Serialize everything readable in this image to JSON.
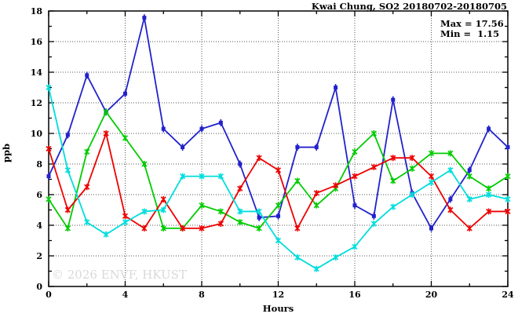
{
  "watermark": "© 2026 ENVF, HKUST",
  "chart_data": {
    "type": "line",
    "title": "Kwai Chung, SO2 20180702-20180705",
    "xlabel": "Hours",
    "ylabel": "ppb",
    "xlim": [
      0,
      24
    ],
    "ylim": [
      0,
      18
    ],
    "grid": true,
    "legend": "none",
    "x_major_ticks": [
      0,
      4,
      8,
      12,
      16,
      20,
      24
    ],
    "x_minor_ticks": [
      2,
      6,
      10,
      14,
      18,
      22
    ],
    "y_major_ticks": [
      0,
      2,
      4,
      6,
      8,
      10,
      12,
      14,
      16,
      18
    ],
    "y_minor_ticks": [
      1,
      3,
      5,
      7,
      9,
      11,
      13,
      15,
      17
    ],
    "x": [
      0,
      1,
      2,
      3,
      4,
      5,
      6,
      7,
      8,
      9,
      10,
      11,
      12,
      13,
      14,
      15,
      16,
      17,
      18,
      19,
      20,
      21,
      22,
      23,
      24
    ],
    "series": [
      {
        "name": "station-blue",
        "color": "#2222cc",
        "values": [
          7.2,
          9.9,
          13.8,
          11.4,
          12.6,
          17.56,
          10.3,
          9.1,
          10.3,
          10.7,
          8.0,
          4.5,
          4.6,
          9.1,
          9.1,
          13.0,
          5.3,
          4.6,
          12.2,
          6.1,
          3.8,
          5.7,
          7.6,
          10.3,
          9.1
        ]
      },
      {
        "name": "station-green",
        "color": "#00cc00",
        "values": [
          5.7,
          3.8,
          8.8,
          11.4,
          9.7,
          8.0,
          3.8,
          3.8,
          5.3,
          4.9,
          4.2,
          3.8,
          5.3,
          6.9,
          5.3,
          6.4,
          8.8,
          10.0,
          6.9,
          7.7,
          8.7,
          8.7,
          7.2,
          6.4,
          7.2
        ]
      },
      {
        "name": "station-red",
        "color": "#ee0000",
        "values": [
          9.0,
          5.0,
          6.5,
          10.0,
          4.6,
          3.8,
          5.7,
          3.8,
          3.8,
          4.1,
          6.4,
          8.4,
          7.6,
          3.8,
          6.1,
          6.6,
          7.2,
          7.8,
          8.4,
          8.4,
          7.2,
          5.0,
          3.8,
          4.9,
          4.9
        ]
      },
      {
        "name": "station-cyan",
        "color": "#00dddd",
        "values": [
          13.0,
          7.6,
          4.2,
          3.4,
          4.2,
          4.9,
          5.0,
          7.2,
          7.2,
          7.2,
          4.9,
          4.9,
          3.0,
          1.9,
          1.15,
          1.9,
          2.6,
          4.1,
          5.2,
          6.0,
          6.8,
          7.6,
          5.7,
          6.0,
          5.7
        ]
      }
    ],
    "annotations": {
      "max_label": "Max = 17.56",
      "min_label": "Min =  1.15"
    }
  }
}
